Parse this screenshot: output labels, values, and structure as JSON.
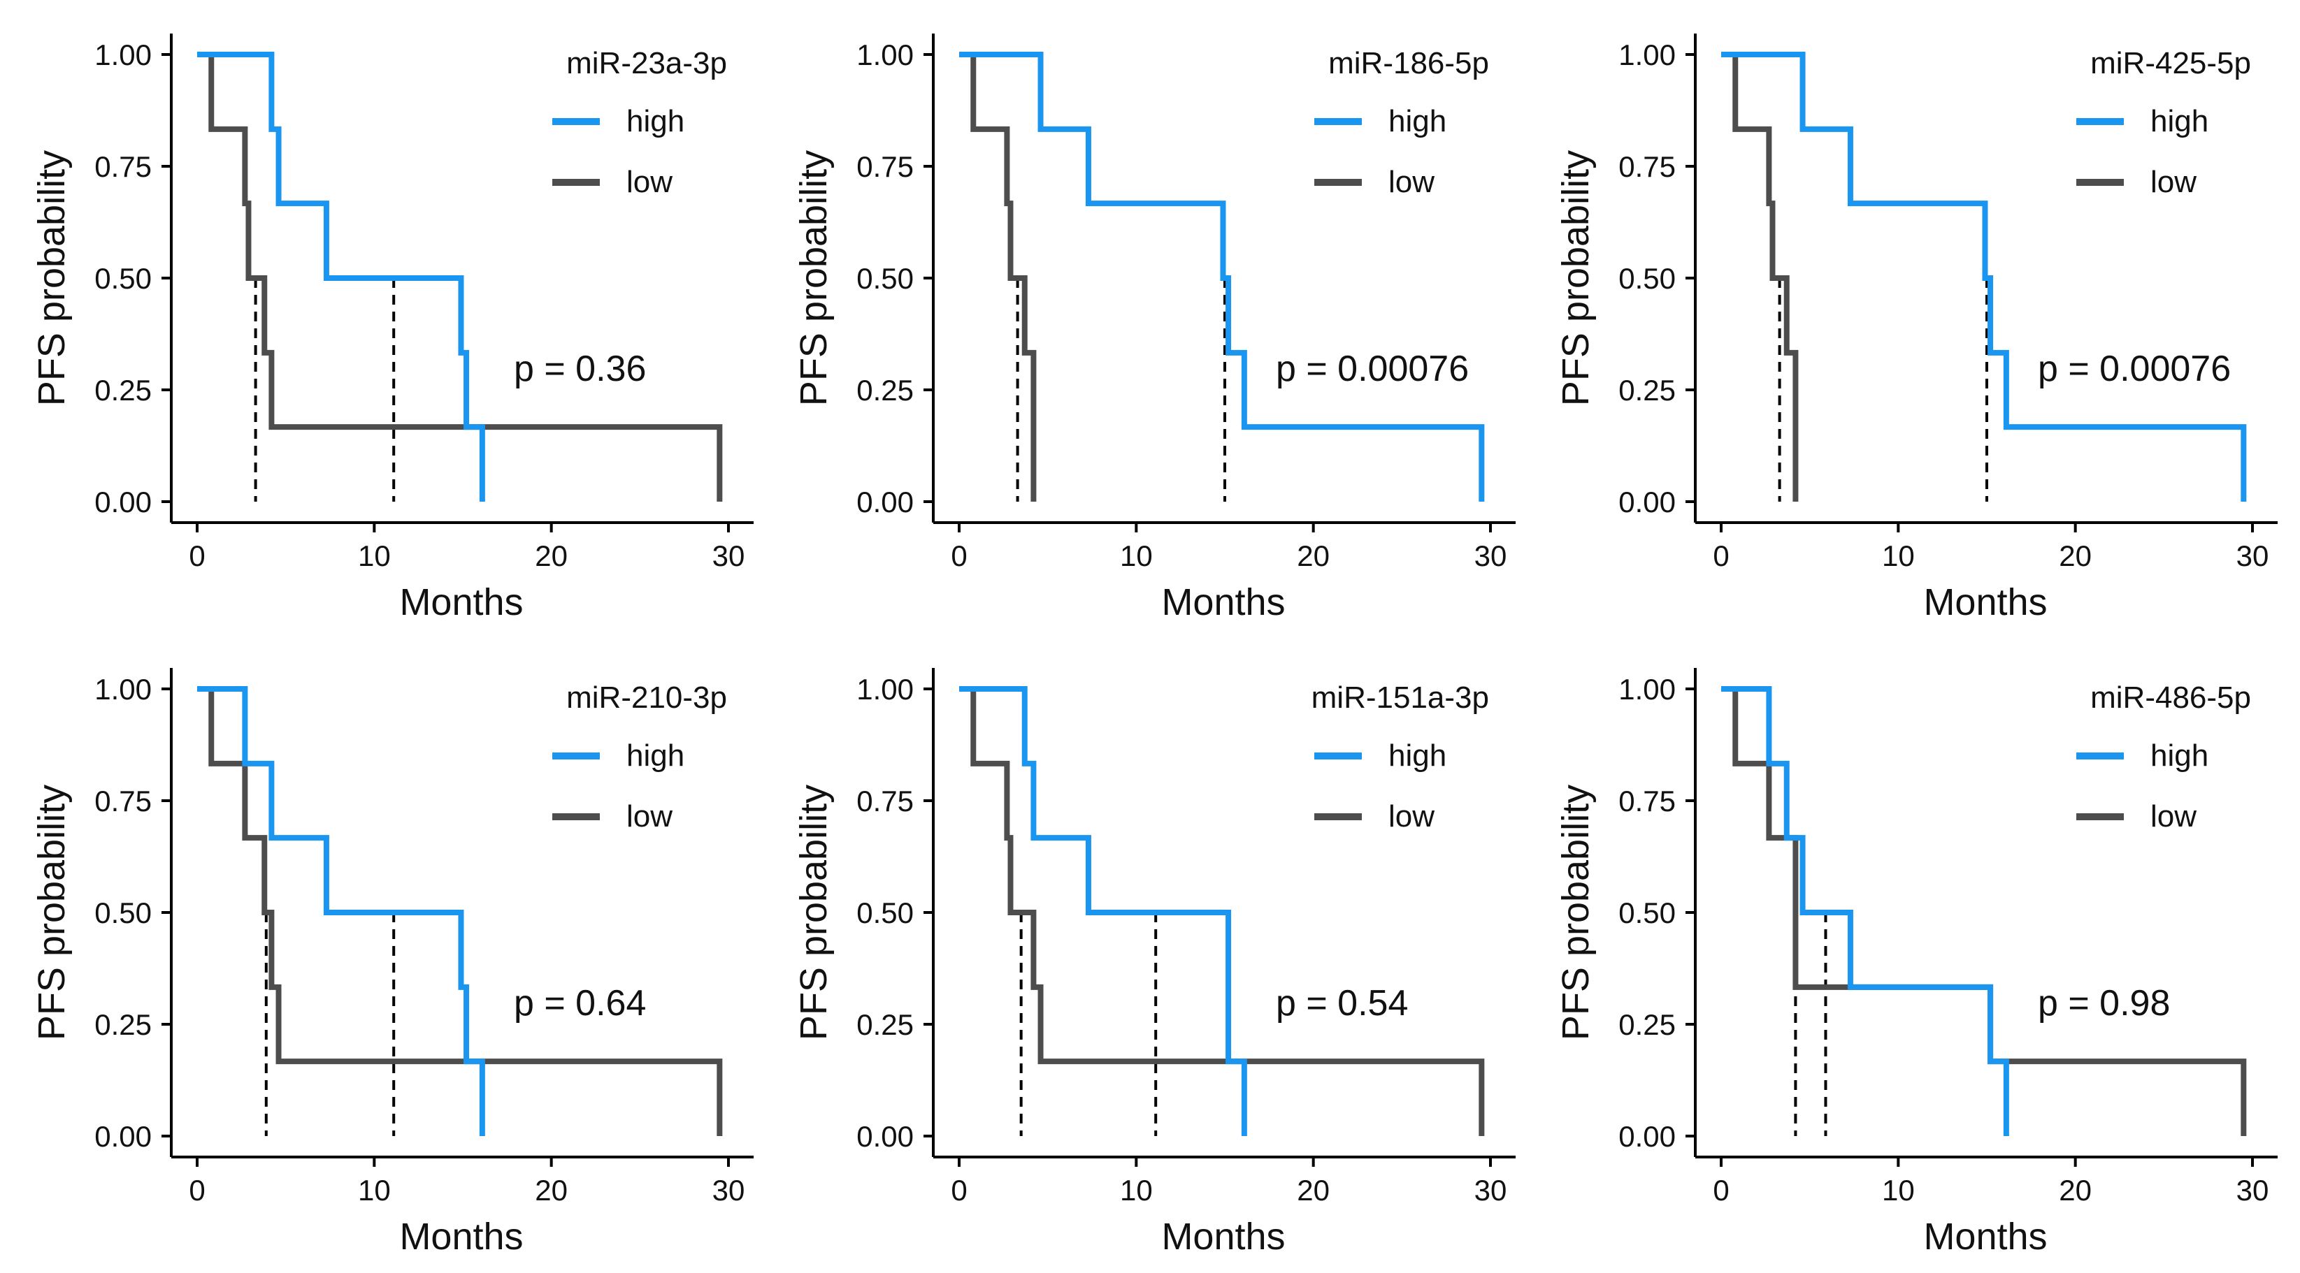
{
  "colors": {
    "high": "#1a96f0",
    "low": "#4d4d4d",
    "median": "#000000",
    "axis": "#000000"
  },
  "chart_data": [
    {
      "type": "line",
      "title": "miR-23a-3p",
      "xlabel": "Months",
      "ylabel": "PFS probability",
      "xlim": [
        0,
        30
      ],
      "ylim": [
        0,
        1
      ],
      "xticks": [
        "0",
        "10",
        "20",
        "30"
      ],
      "yticks": [
        "0.00",
        "0.25",
        "0.50",
        "0.75",
        "1.00"
      ],
      "legend": [
        "high",
        "low"
      ],
      "pvalue": "p = 0.36",
      "series": [
        {
          "name": "high",
          "steps": [
            [
              0,
              1
            ],
            [
              4.2,
              0.833
            ],
            [
              4.6,
              0.667
            ],
            [
              7.3,
              0.5
            ],
            [
              14.9,
              0.333
            ],
            [
              15.2,
              0.167
            ],
            [
              16.1,
              0
            ]
          ]
        },
        {
          "name": "low",
          "steps": [
            [
              0,
              1
            ],
            [
              0.8,
              0.833
            ],
            [
              2.7,
              0.667
            ],
            [
              2.9,
              0.5
            ],
            [
              3.8,
              0.333
            ],
            [
              4.2,
              0.167
            ],
            [
              29.5,
              0
            ]
          ]
        }
      ],
      "medians": [
        3.3,
        11.1
      ]
    },
    {
      "type": "line",
      "title": "miR-186-5p",
      "xlabel": "Months",
      "ylabel": "PFS probability",
      "xlim": [
        0,
        30
      ],
      "ylim": [
        0,
        1
      ],
      "xticks": [
        "0",
        "10",
        "20",
        "30"
      ],
      "yticks": [
        "0.00",
        "0.25",
        "0.50",
        "0.75",
        "1.00"
      ],
      "legend": [
        "high",
        "low"
      ],
      "pvalue": "p = 0.00076",
      "series": [
        {
          "name": "high",
          "steps": [
            [
              0,
              1
            ],
            [
              4.6,
              0.833
            ],
            [
              7.3,
              0.667
            ],
            [
              14.9,
              0.5
            ],
            [
              15.2,
              0.333
            ],
            [
              16.1,
              0.167
            ],
            [
              29.5,
              0
            ]
          ]
        },
        {
          "name": "low",
          "steps": [
            [
              0,
              1
            ],
            [
              0.8,
              0.833
            ],
            [
              2.7,
              0.667
            ],
            [
              2.9,
              0.5
            ],
            [
              3.7,
              0.333
            ],
            [
              4.2,
              0
            ]
          ]
        }
      ],
      "medians": [
        3.3,
        15.0
      ]
    },
    {
      "type": "line",
      "title": "miR-425-5p",
      "xlabel": "Months",
      "ylabel": "PFS probability",
      "xlim": [
        0,
        30
      ],
      "ylim": [
        0,
        1
      ],
      "xticks": [
        "0",
        "10",
        "20",
        "30"
      ],
      "yticks": [
        "0.00",
        "0.25",
        "0.50",
        "0.75",
        "1.00"
      ],
      "legend": [
        "high",
        "low"
      ],
      "pvalue": "p = 0.00076",
      "series": [
        {
          "name": "high",
          "steps": [
            [
              0,
              1
            ],
            [
              4.6,
              0.833
            ],
            [
              7.3,
              0.667
            ],
            [
              14.9,
              0.5
            ],
            [
              15.2,
              0.333
            ],
            [
              16.1,
              0.167
            ],
            [
              29.5,
              0
            ]
          ]
        },
        {
          "name": "low",
          "steps": [
            [
              0,
              1
            ],
            [
              0.8,
              0.833
            ],
            [
              2.7,
              0.667
            ],
            [
              2.9,
              0.5
            ],
            [
              3.7,
              0.333
            ],
            [
              4.2,
              0
            ]
          ]
        }
      ],
      "medians": [
        3.3,
        15.0
      ]
    },
    {
      "type": "line",
      "title": "miR-210-3p",
      "xlabel": "Months",
      "ylabel": "PFS probability",
      "xlim": [
        0,
        30
      ],
      "ylim": [
        0,
        1
      ],
      "xticks": [
        "0",
        "10",
        "20",
        "30"
      ],
      "yticks": [
        "0.00",
        "0.25",
        "0.50",
        "0.75",
        "1.00"
      ],
      "legend": [
        "high",
        "low"
      ],
      "pvalue": "p = 0.64",
      "series": [
        {
          "name": "high",
          "steps": [
            [
              0,
              1
            ],
            [
              2.7,
              0.833
            ],
            [
              4.2,
              0.667
            ],
            [
              7.3,
              0.5
            ],
            [
              14.9,
              0.333
            ],
            [
              15.2,
              0.167
            ],
            [
              16.1,
              0
            ]
          ]
        },
        {
          "name": "low",
          "steps": [
            [
              0,
              1
            ],
            [
              0.8,
              0.833
            ],
            [
              2.7,
              0.667
            ],
            [
              3.8,
              0.5
            ],
            [
              4.2,
              0.333
            ],
            [
              4.6,
              0.167
            ],
            [
              29.5,
              0
            ]
          ]
        }
      ],
      "medians": [
        3.9,
        11.1
      ]
    },
    {
      "type": "line",
      "title": "miR-151a-3p",
      "xlabel": "Months",
      "ylabel": "PFS probability",
      "xlim": [
        0,
        30
      ],
      "ylim": [
        0,
        1
      ],
      "xticks": [
        "0",
        "10",
        "20",
        "30"
      ],
      "yticks": [
        "0.00",
        "0.25",
        "0.50",
        "0.75",
        "1.00"
      ],
      "legend": [
        "high",
        "low"
      ],
      "pvalue": "p = 0.54",
      "series": [
        {
          "name": "high",
          "steps": [
            [
              0,
              1
            ],
            [
              3.7,
              0.833
            ],
            [
              4.2,
              0.667
            ],
            [
              7.3,
              0.5
            ],
            [
              15.2,
              0.167
            ],
            [
              16.1,
              0
            ]
          ]
        },
        {
          "name": "low",
          "steps": [
            [
              0,
              1
            ],
            [
              0.8,
              0.833
            ],
            [
              2.7,
              0.667
            ],
            [
              2.9,
              0.5
            ],
            [
              3.8,
              0.5
            ],
            [
              4.2,
              0.333
            ],
            [
              4.6,
              0.167
            ],
            [
              29.5,
              0
            ]
          ]
        }
      ],
      "medians": [
        3.5,
        11.1
      ]
    },
    {
      "type": "line",
      "title": "miR-486-5p",
      "xlabel": "Months",
      "ylabel": "PFS probability",
      "xlim": [
        0,
        30
      ],
      "ylim": [
        0,
        1
      ],
      "xticks": [
        "0",
        "10",
        "20",
        "30"
      ],
      "yticks": [
        "0.00",
        "0.25",
        "0.50",
        "0.75",
        "1.00"
      ],
      "legend": [
        "high",
        "low"
      ],
      "pvalue": "p = 0.98",
      "series": [
        {
          "name": "high",
          "steps": [
            [
              0,
              1
            ],
            [
              2.7,
              0.833
            ],
            [
              3.7,
              0.667
            ],
            [
              4.6,
              0.5
            ],
            [
              7.3,
              0.333
            ],
            [
              15.2,
              0.167
            ],
            [
              16.1,
              0
            ]
          ]
        },
        {
          "name": "low",
          "steps": [
            [
              0,
              1
            ],
            [
              0.8,
              0.833
            ],
            [
              2.7,
              0.667
            ],
            [
              4.2,
              0.333
            ],
            [
              15.2,
              0.167
            ],
            [
              29.5,
              0
            ]
          ]
        }
      ],
      "medians": [
        4.2,
        5.9
      ]
    }
  ]
}
